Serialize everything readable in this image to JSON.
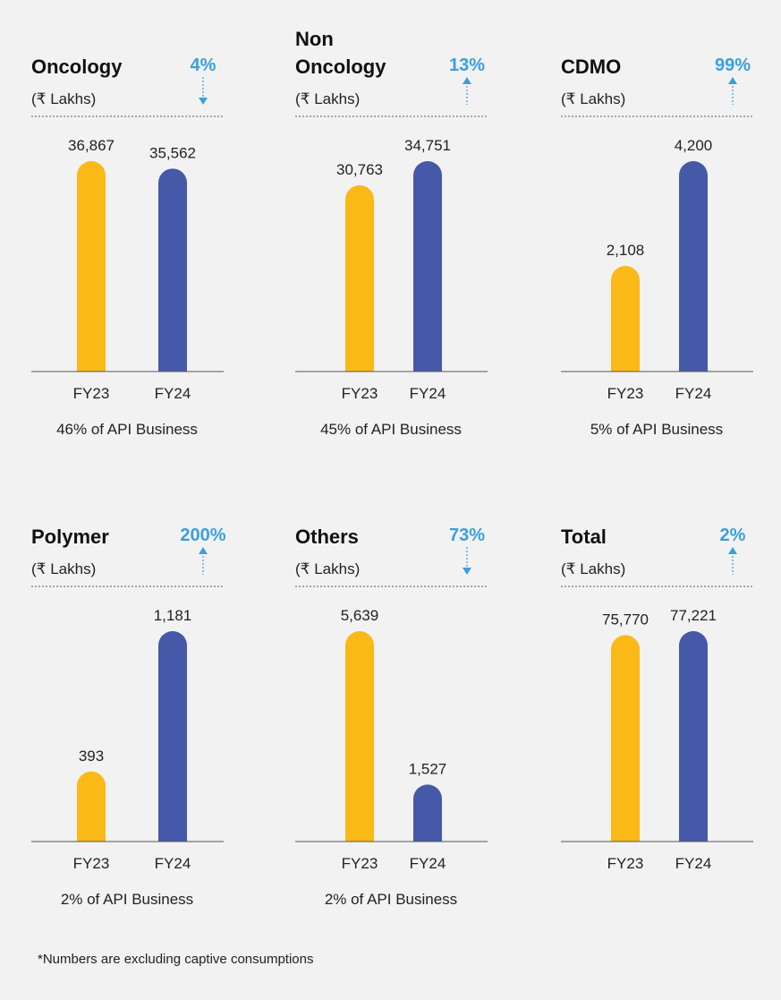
{
  "chart_data": [
    {
      "type": "bar",
      "title": "Oncology",
      "subtitle": "(₹ Lakhs)",
      "change": "4%",
      "change_direction": "down",
      "categories": [
        "FY23",
        "FY24"
      ],
      "values": [
        36867,
        35562
      ],
      "value_labels": [
        "36,867",
        "35,562"
      ],
      "colors": [
        "#fbb918",
        "#4659a8"
      ],
      "ylim": [
        0,
        36867
      ],
      "note": "46% of API Business"
    },
    {
      "type": "bar",
      "title": "Non Oncology",
      "subtitle": "(₹ Lakhs)",
      "change": "13%",
      "change_direction": "up",
      "categories": [
        "FY23",
        "FY24"
      ],
      "values": [
        30763,
        34751
      ],
      "value_labels": [
        "30,763",
        "34,751"
      ],
      "colors": [
        "#fbb918",
        "#4659a8"
      ],
      "ylim": [
        0,
        34751
      ],
      "note": "45% of API Business"
    },
    {
      "type": "bar",
      "title": "CDMO",
      "subtitle": "(₹ Lakhs)",
      "change": "99%",
      "change_direction": "up",
      "categories": [
        "FY23",
        "FY24"
      ],
      "values": [
        2108,
        4200
      ],
      "value_labels": [
        "2,108",
        "4,200"
      ],
      "colors": [
        "#fbb918",
        "#4659a8"
      ],
      "ylim": [
        0,
        4200
      ],
      "note": "5% of API Business"
    },
    {
      "type": "bar",
      "title": "Polymer",
      "subtitle": "(₹ Lakhs)",
      "change": "200%",
      "change_direction": "up",
      "categories": [
        "FY23",
        "FY24"
      ],
      "values": [
        393,
        1181
      ],
      "value_labels": [
        "393",
        "1,181"
      ],
      "colors": [
        "#fbb918",
        "#4659a8"
      ],
      "ylim": [
        0,
        1181
      ],
      "note": "2% of API Business"
    },
    {
      "type": "bar",
      "title": "Others",
      "subtitle": "(₹ Lakhs)",
      "change": "73%",
      "change_direction": "down",
      "categories": [
        "FY23",
        "FY24"
      ],
      "values": [
        5639,
        1527
      ],
      "value_labels": [
        "5,639",
        "1,527"
      ],
      "colors": [
        "#fbb918",
        "#4659a8"
      ],
      "ylim": [
        0,
        5639
      ],
      "note": "2% of API Business"
    },
    {
      "type": "bar",
      "title": "Total",
      "subtitle": "(₹ Lakhs)",
      "change": "2%",
      "change_direction": "up",
      "categories": [
        "FY23",
        "FY24"
      ],
      "values": [
        75770,
        77221
      ],
      "value_labels": [
        "75,770",
        "77,221"
      ],
      "colors": [
        "#fbb918",
        "#4659a8"
      ],
      "ylim": [
        0,
        77221
      ]
    }
  ],
  "footnote": "*Numbers are excluding captive consumptions"
}
